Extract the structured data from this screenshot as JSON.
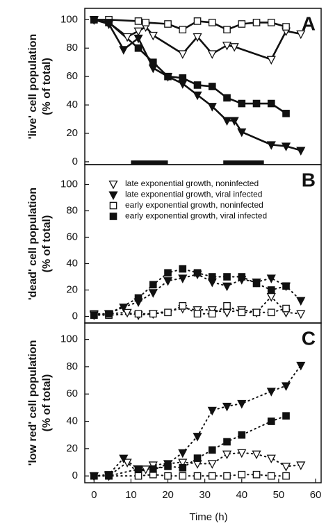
{
  "chart_data": [
    {
      "type": "line",
      "panel_label": "A",
      "ylabel": [
        "'live' cell population",
        "(% of total)"
      ],
      "xlim": [
        -2.5,
        61.5
      ],
      "ylim": [
        -2,
        108
      ],
      "yticks": [
        0,
        20,
        40,
        60,
        80,
        100
      ],
      "line_style": "solid",
      "dark_periods": [
        [
          10,
          20
        ],
        [
          35,
          46
        ]
      ],
      "series": [
        {
          "marker": "triangle-open",
          "color": "#111",
          "x": [
            0,
            4,
            9,
            12,
            14,
            16,
            24,
            28,
            32,
            36,
            38,
            48,
            52,
            56
          ],
          "values": [
            100,
            98,
            88,
            92,
            95,
            89,
            76,
            88,
            76,
            82,
            81,
            72,
            92,
            90
          ]
        },
        {
          "marker": "triangle-filled",
          "color": "#111",
          "x": [
            0,
            4,
            8,
            12,
            16,
            20,
            24,
            28,
            32,
            36,
            38,
            40,
            48,
            52,
            56
          ],
          "values": [
            100,
            97,
            79,
            87,
            66,
            60,
            55,
            47,
            39,
            29,
            29,
            21,
            12,
            11,
            8
          ]
        },
        {
          "marker": "square-open",
          "color": "#111",
          "x": [
            0,
            4,
            12,
            14,
            20,
            24,
            28,
            32,
            36,
            40,
            44,
            48,
            52
          ],
          "values": [
            100,
            100,
            99,
            98,
            97,
            93,
            99,
            98,
            93,
            97,
            98,
            98,
            95
          ]
        },
        {
          "marker": "square-filled",
          "color": "#111",
          "x": [
            0,
            4,
            12,
            16,
            20,
            24,
            28,
            32,
            36,
            40,
            44,
            48,
            52
          ],
          "values": [
            100,
            98,
            80,
            70,
            60,
            59,
            54,
            53,
            45,
            41,
            41,
            41,
            34
          ]
        }
      ]
    },
    {
      "type": "line",
      "panel_label": "B",
      "ylabel": [
        "'dead' cell population",
        "(% of total)"
      ],
      "xlim": [
        -2.5,
        61.5
      ],
      "ylim": [
        -5,
        115
      ],
      "yticks": [
        0,
        20,
        40,
        60,
        80,
        100
      ],
      "line_style": "dotted",
      "series": [
        {
          "name": "late exponential growth, noninfected",
          "marker": "triangle-open",
          "color": "#111",
          "x": [
            0,
            4,
            9,
            12,
            16,
            24,
            28,
            32,
            36,
            40,
            44,
            48,
            52,
            56
          ],
          "values": [
            2,
            2,
            3,
            1,
            2,
            6,
            5,
            5,
            3,
            5,
            3,
            15,
            3,
            2
          ]
        },
        {
          "name": "late exponential growth, viral infected",
          "marker": "triangle-filled",
          "color": "#111",
          "x": [
            0,
            4,
            8,
            12,
            16,
            20,
            24,
            28,
            32,
            36,
            40,
            44,
            48,
            52,
            56
          ],
          "values": [
            1,
            2,
            7,
            11,
            18,
            27,
            29,
            32,
            26,
            23,
            28,
            26,
            29,
            23,
            12
          ]
        },
        {
          "name": "early exponential growth, noninfected",
          "marker": "square-open",
          "color": "#111",
          "x": [
            0,
            4,
            12,
            16,
            20,
            24,
            28,
            32,
            36,
            40,
            44,
            48,
            52
          ],
          "values": [
            1,
            1,
            2,
            2,
            3,
            8,
            2,
            2,
            8,
            3,
            3,
            3,
            6
          ]
        },
        {
          "name": "early exponential growth, viral infected",
          "marker": "square-filled",
          "color": "#111",
          "x": [
            0,
            4,
            12,
            16,
            20,
            24,
            28,
            32,
            36,
            40,
            44,
            48,
            52
          ],
          "values": [
            1,
            2,
            14,
            24,
            33,
            36,
            33,
            30,
            30,
            30,
            25,
            20,
            23
          ]
        }
      ]
    },
    {
      "type": "line",
      "panel_label": "C",
      "ylabel": [
        "'low red' cell population",
        "(% of total)"
      ],
      "xlabel": "Time (h)",
      "xlim": [
        -2.5,
        61.5
      ],
      "xticks": [
        0,
        10,
        20,
        30,
        40,
        50,
        60
      ],
      "ylim": [
        -5,
        112
      ],
      "yticks": [
        0,
        20,
        40,
        60,
        80,
        100
      ],
      "line_style": "dotted",
      "series": [
        {
          "marker": "triangle-open",
          "color": "#111",
          "x": [
            0,
            4,
            9,
            12,
            14,
            16,
            24,
            28,
            32,
            36,
            40,
            44,
            48,
            52,
            56
          ],
          "values": [
            0,
            0,
            10,
            2,
            5,
            8,
            10,
            9,
            9,
            16,
            17,
            16,
            13,
            7,
            8
          ]
        },
        {
          "marker": "triangle-filled",
          "color": "#111",
          "x": [
            0,
            4,
            8,
            12,
            16,
            20,
            24,
            28,
            32,
            36,
            40,
            48,
            52,
            56
          ],
          "values": [
            0,
            1,
            13,
            5,
            4,
            9,
            17,
            29,
            48,
            51,
            53,
            62,
            66,
            81
          ]
        },
        {
          "marker": "square-open",
          "color": "#111",
          "x": [
            0,
            4,
            12,
            16,
            20,
            24,
            28,
            32,
            36,
            40,
            44,
            48,
            52
          ],
          "values": [
            0,
            0,
            0,
            1,
            0,
            0,
            0,
            0,
            0,
            1,
            1,
            0,
            0
          ]
        },
        {
          "marker": "square-filled",
          "color": "#111",
          "x": [
            0,
            4,
            12,
            16,
            20,
            24,
            28,
            32,
            36,
            40,
            48,
            52
          ],
          "values": [
            0,
            0,
            5,
            5,
            7,
            6,
            13,
            19,
            25,
            30,
            40,
            44
          ]
        }
      ]
    }
  ]
}
